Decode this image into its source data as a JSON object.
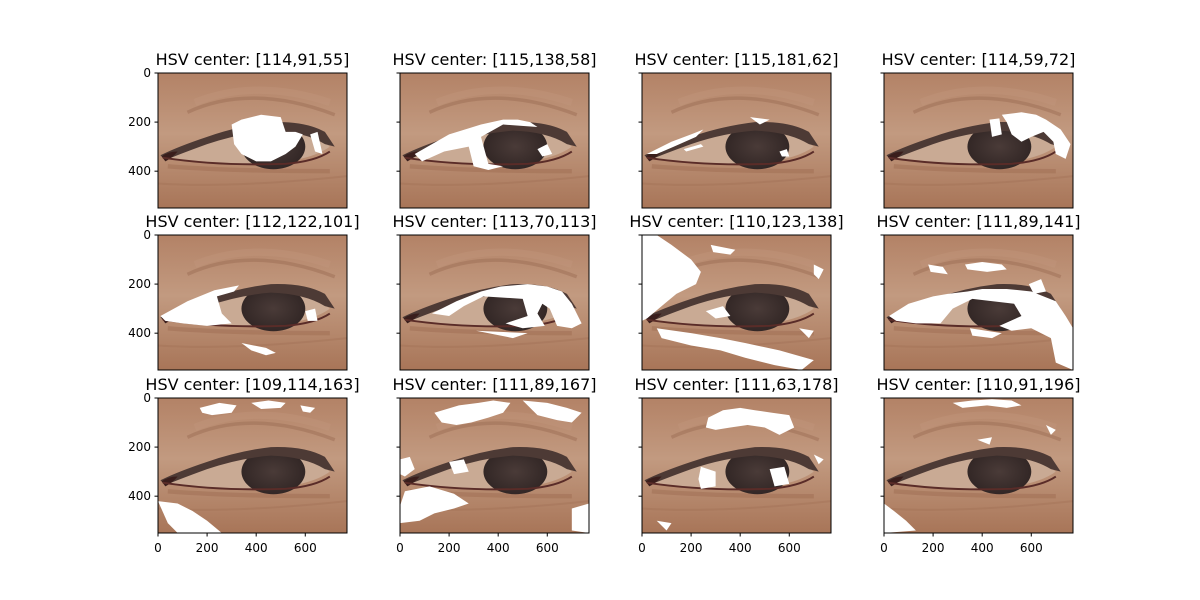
{
  "chart_data": {
    "type": "image-grid",
    "rows": 3,
    "cols": 4,
    "image_width": 770,
    "image_height": 550,
    "xticks": [
      0,
      200,
      400,
      600
    ],
    "yticks": [
      0,
      200,
      400
    ],
    "panels": [
      {
        "title": "HSV center: [114,91,55]"
      },
      {
        "title": "HSV center: [115,138,58]"
      },
      {
        "title": "HSV center: [115,181,62]"
      },
      {
        "title": "HSV center: [114,59,72]"
      },
      {
        "title": "HSV center: [112,122,101]"
      },
      {
        "title": "HSV center: [113,70,113]"
      },
      {
        "title": "HSV center: [110,123,138]"
      },
      {
        "title": "HSV center: [111,89,141]"
      },
      {
        "title": "HSV center: [109,114,163]"
      },
      {
        "title": "HSV center: [111,89,167]"
      },
      {
        "title": "HSV center: [111,63,178]"
      },
      {
        "title": "HSV center: [110,91,196]"
      }
    ],
    "colors": {
      "skin": "#b07e62",
      "lid": "#c3987e",
      "lashes": "#4d3a35",
      "iris": "#3f3230",
      "sclera": "#c9aa94",
      "mask": "#ffffff",
      "frame": "#000000"
    }
  }
}
